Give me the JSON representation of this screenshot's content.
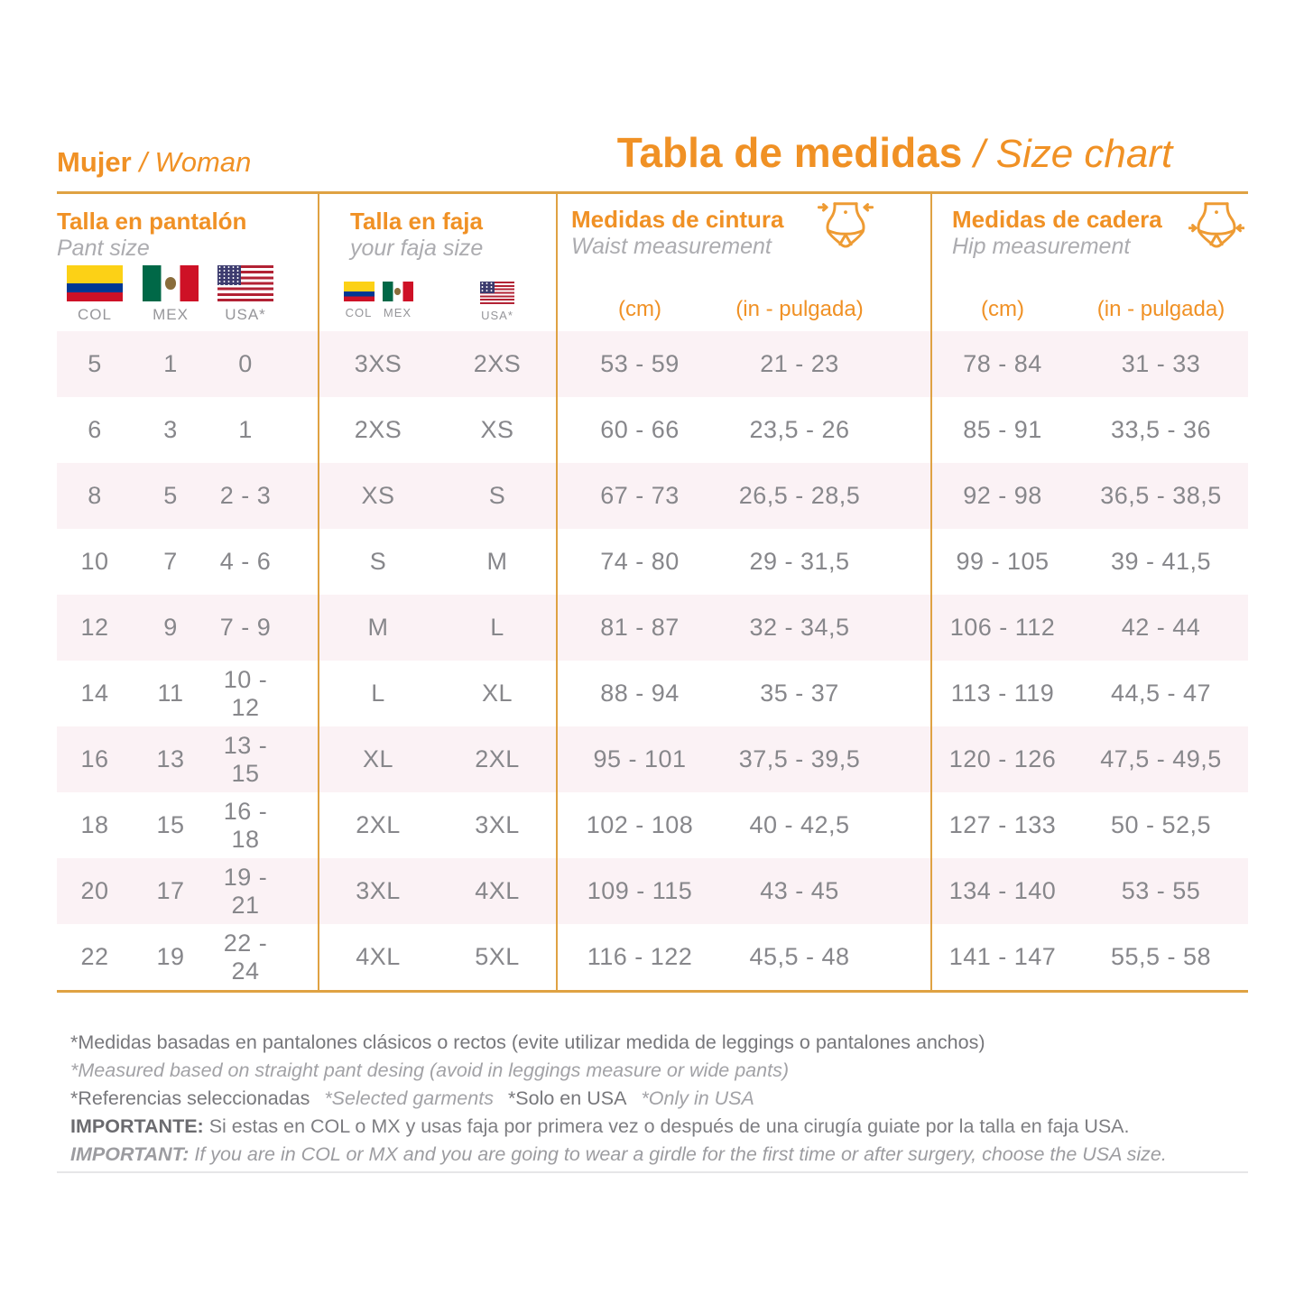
{
  "colors": {
    "accent_orange": "#F09125",
    "table_border_gold": "#DFA243",
    "stripe_pink": "#FBF2F5",
    "value_gray": "#87878B",
    "subtitle_gray": "#ACACB0",
    "footnote_dark": "#77777B",
    "footnote_light": "#A2A2A6"
  },
  "header": {
    "left_title_bold": "Mujer",
    "left_title_italic": "/ Woman",
    "main_title_bold": "Tabla de medidas",
    "main_title_italic": "/ Size chart"
  },
  "groups": {
    "pant": {
      "title": "Talla en pantalón",
      "subtitle": "Pant size",
      "flags": [
        {
          "country": "colombia",
          "label": "COL"
        },
        {
          "country": "mexico",
          "label": "MEX"
        },
        {
          "country": "usa",
          "label": "USA*"
        }
      ]
    },
    "faja": {
      "title": "Talla en faja",
      "subtitle": "your faja size",
      "flags": [
        {
          "country": "colombia",
          "label": "COL"
        },
        {
          "country": "mexico",
          "label": "MEX"
        },
        {
          "country": "usa",
          "label": "USA*"
        }
      ]
    },
    "waist": {
      "title": "Medidas de cintura",
      "subtitle": "Waist measurement",
      "cm_label": "(cm)",
      "in_label": "(in - pulgada)"
    },
    "hip": {
      "title": "Medidas de cadera",
      "subtitle": "Hip measurement",
      "cm_label": "(cm)",
      "in_label": "(in - pulgada)"
    }
  },
  "table": {
    "rows": [
      {
        "pant": [
          "5",
          "1",
          "0"
        ],
        "faja": [
          "3XS",
          "2XS"
        ],
        "waist": [
          "53 - 59",
          "21 - 23"
        ],
        "hip": [
          "78 - 84",
          "31 - 33"
        ]
      },
      {
        "pant": [
          "6",
          "3",
          "1"
        ],
        "faja": [
          "2XS",
          "XS"
        ],
        "waist": [
          "60 - 66",
          "23,5 - 26"
        ],
        "hip": [
          "85 - 91",
          "33,5 - 36"
        ]
      },
      {
        "pant": [
          "8",
          "5",
          "2 - 3"
        ],
        "faja": [
          "XS",
          "S"
        ],
        "waist": [
          "67 - 73",
          "26,5 - 28,5"
        ],
        "hip": [
          "92 - 98",
          "36,5 - 38,5"
        ]
      },
      {
        "pant": [
          "10",
          "7",
          "4 - 6"
        ],
        "faja": [
          "S",
          "M"
        ],
        "waist": [
          "74 - 80",
          "29 - 31,5"
        ],
        "hip": [
          "99 - 105",
          "39 - 41,5"
        ]
      },
      {
        "pant": [
          "12",
          "9",
          "7 - 9"
        ],
        "faja": [
          "M",
          "L"
        ],
        "waist": [
          "81 - 87",
          "32 - 34,5"
        ],
        "hip": [
          "106 - 112",
          "42 - 44"
        ]
      },
      {
        "pant": [
          "14",
          "11",
          "10 - 12"
        ],
        "faja": [
          "L",
          "XL"
        ],
        "waist": [
          "88 - 94",
          "35 - 37"
        ],
        "hip": [
          "113 - 119",
          "44,5 - 47"
        ]
      },
      {
        "pant": [
          "16",
          "13",
          "13 - 15"
        ],
        "faja": [
          "XL",
          "2XL"
        ],
        "waist": [
          "95 - 101",
          "37,5 - 39,5"
        ],
        "hip": [
          "120 - 126",
          "47,5 - 49,5"
        ]
      },
      {
        "pant": [
          "18",
          "15",
          "16 - 18"
        ],
        "faja": [
          "2XL",
          "3XL"
        ],
        "waist": [
          "102 - 108",
          "40 - 42,5"
        ],
        "hip": [
          "127 - 133",
          "50 - 52,5"
        ]
      },
      {
        "pant": [
          "20",
          "17",
          "19 - 21"
        ],
        "faja": [
          "3XL",
          "4XL"
        ],
        "waist": [
          "109 - 115",
          "43 - 45"
        ],
        "hip": [
          "134 - 140",
          "53 - 55"
        ]
      },
      {
        "pant": [
          "22",
          "19",
          "22 - 24"
        ],
        "faja": [
          "4XL",
          "5XL"
        ],
        "waist": [
          "116 - 122",
          "45,5 - 48"
        ],
        "hip": [
          "141 - 147",
          "55,5 - 58"
        ]
      }
    ]
  },
  "footnotes": {
    "line1": "*Medidas basadas en pantalones clásicos o rectos (evite utilizar medida de leggings o pantalones anchos)",
    "line2": "*Measured based on straight pant desing (avoid in leggings measure or wide pants)",
    "line3_a": "*Referencias seleccionadas",
    "line3_b": "*Selected garments",
    "line3_c": "*Solo en USA",
    "line3_d": "*Only in USA",
    "line4_bold": "IMPORTANTE:",
    "line4_text": "Si estas en COL o MX y usas faja por primera vez o después de una cirugía guiate por la talla en faja USA.",
    "line5_bold": "IMPORTANT:",
    "line5_text": "If you are in COL or MX and you are going to wear a girdle for the first time or after surgery, choose the USA size."
  }
}
